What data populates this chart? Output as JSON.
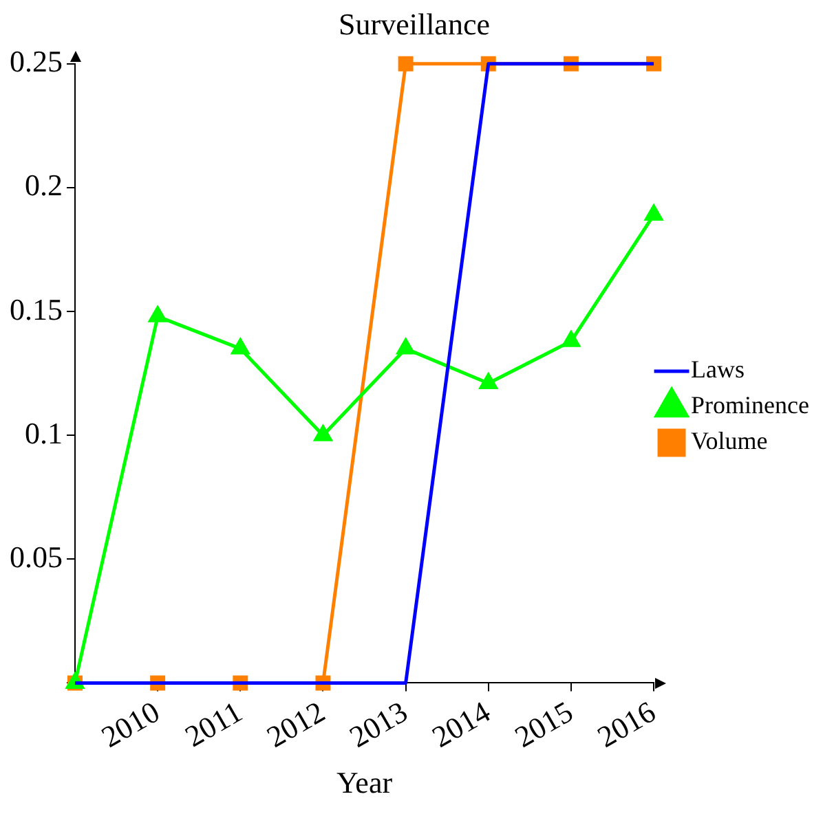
{
  "chart_data": {
    "type": "line",
    "title": "Surveillance",
    "xlabel": "Year",
    "x": [
      2009,
      2010,
      2011,
      2012,
      2013,
      2014,
      2015,
      2016
    ],
    "xlim": [
      2009,
      2016
    ],
    "xticks": [
      2010,
      2011,
      2012,
      2013,
      2014,
      2015,
      2016
    ],
    "ylim": [
      0,
      0.25
    ],
    "yticks": [
      {
        "value": 0,
        "label": null
      },
      0.05,
      0.1,
      0.15,
      0.2,
      0.25
    ],
    "grid": false,
    "legend": "right",
    "line_style": "solid",
    "series": [
      {
        "name": "Volume",
        "color": "#ff8000",
        "marker": "square",
        "values": [
          0,
          0,
          0,
          0,
          0.25,
          0.25,
          0.25,
          0.25
        ]
      },
      {
        "name": "Prominence",
        "color": "#00ff00",
        "marker": "triangle",
        "values": [
          0,
          0.148,
          0.135,
          0.1,
          0.135,
          0.121,
          0.138,
          0.189
        ]
      },
      {
        "name": "Laws",
        "color": "#0000ff",
        "marker": "none",
        "values": [
          0,
          0,
          0,
          0,
          0,
          0.25,
          0.25,
          0.25
        ]
      }
    ]
  }
}
